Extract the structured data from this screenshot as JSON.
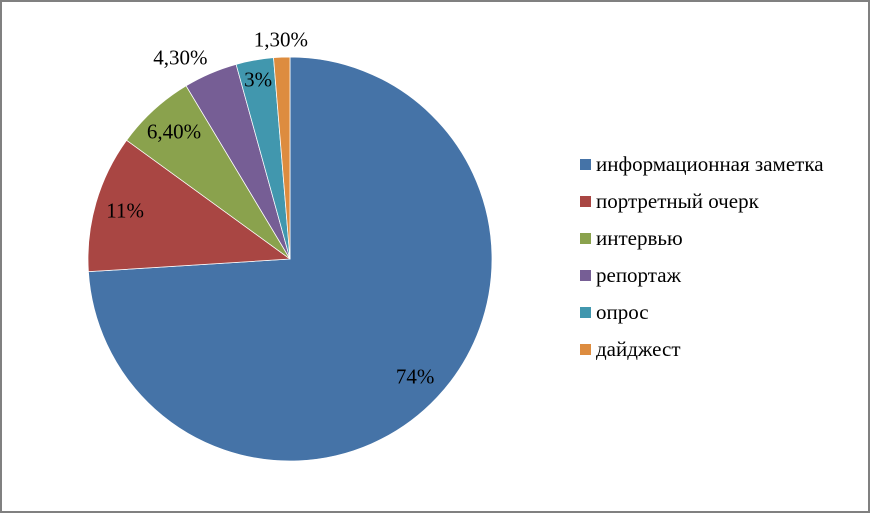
{
  "frame": {
    "background_color": "#ffffff",
    "border_color": "#808080"
  },
  "chart_data": {
    "type": "pie",
    "title": "",
    "legend_position": "right",
    "start_angle_deg": 0,
    "direction": "clockwise",
    "categories": [
      "информационная заметка",
      "портретный очерк",
      "интервью",
      "репортаж",
      "опрос",
      "дайджест"
    ],
    "values": [
      74,
      11,
      6.4,
      4.3,
      3,
      1.3
    ],
    "value_labels": [
      "74%",
      "11%",
      "6,40%",
      "4,30%",
      "3%",
      "1,30%"
    ],
    "colors": [
      "#4573A7",
      "#A94643",
      "#8AA24D",
      "#765E95",
      "#4197AE",
      "#DD8C3F"
    ],
    "label_placement": [
      "inside",
      "inside",
      "inside",
      "outside",
      "inside",
      "outside"
    ],
    "text_color": "#000000"
  }
}
